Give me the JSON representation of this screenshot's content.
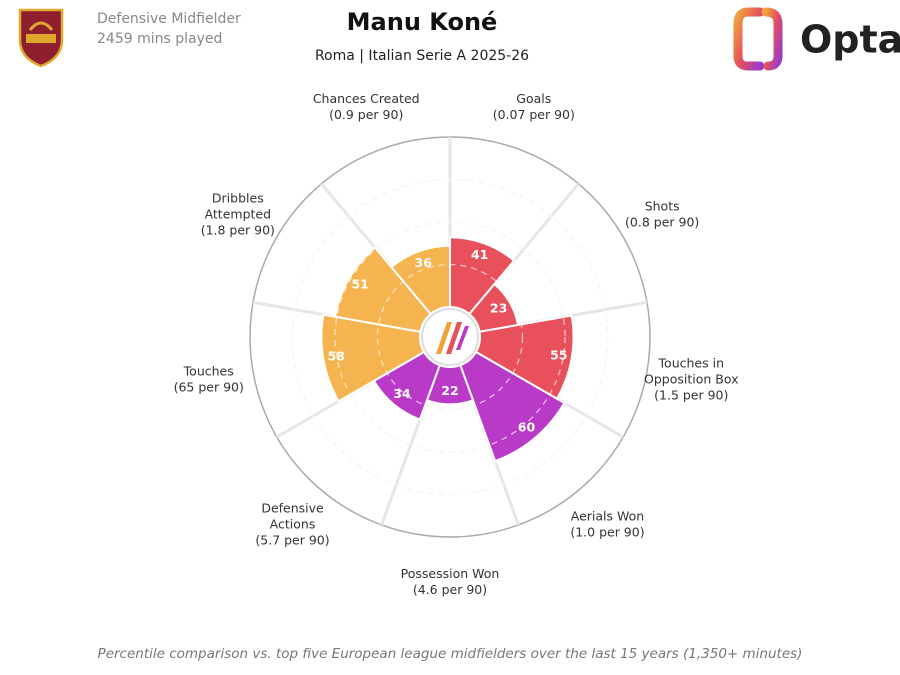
{
  "header": {
    "role": "Defensive Midfielder",
    "minutes": "2459 mins played",
    "brand": "Opta"
  },
  "chart_data": {
    "type": "pizza",
    "title": "Manu Koné",
    "subtitle": "Roma | Italian Serie A 2025-26",
    "categories": [
      [
        "Goals"
      ],
      [
        "Shots"
      ],
      [
        "Touches in",
        "Opposition Box"
      ],
      [
        "Aerials Won"
      ],
      [
        "Possession Won"
      ],
      [
        "Defensive",
        "Actions"
      ],
      [
        "Touches"
      ],
      [
        "Dribbles",
        "Attempted"
      ],
      [
        "Chances Created"
      ]
    ],
    "per90": [
      "(0.07 per 90)",
      "(0.8 per 90)",
      "(1.5 per 90)",
      "(1.0 per 90)",
      "(4.6 per 90)",
      "(5.7 per 90)",
      "(65 per 90)",
      "(1.8 per 90)",
      "(0.9 per 90)"
    ],
    "values": [
      41,
      23,
      55,
      60,
      22,
      34,
      58,
      51,
      36
    ],
    "colors": [
      "#e8505b",
      "#e8505b",
      "#e8505b",
      "#b83ac6",
      "#b83ac6",
      "#b83ac6",
      "#f5b44f",
      "#f5b44f",
      "#f5b44f"
    ],
    "ylim": [
      0,
      100
    ],
    "yticks": [
      25,
      50,
      75,
      100
    ],
    "grid": true,
    "note": "Percentile comparison vs. top five European league midfielders over the last 15 years (1,350+ minutes)"
  }
}
